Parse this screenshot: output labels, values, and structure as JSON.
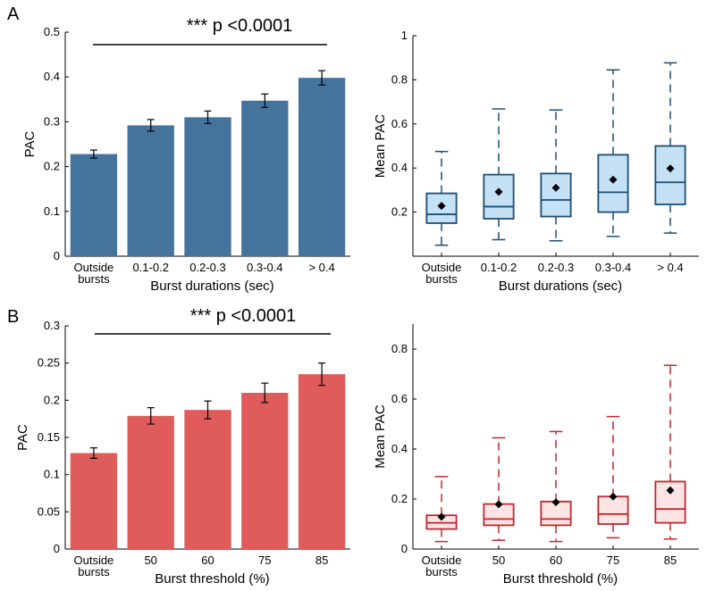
{
  "panel_labels": [
    "A",
    "B"
  ],
  "chart_data": [
    {
      "type": "bar",
      "panel": "A",
      "title": "",
      "color": "#44749c",
      "categories": [
        "Outside\nbursts",
        "0.1-0.2",
        "0.2-0.3",
        "0.3-0.4",
        "> 0.4"
      ],
      "values": [
        0.228,
        0.292,
        0.31,
        0.347,
        0.398
      ],
      "errors": [
        0.009,
        0.013,
        0.014,
        0.015,
        0.016
      ],
      "xlabel": "Burst durations (sec)",
      "ylabel": "PAC",
      "ylim": [
        0,
        0.5
      ],
      "yticks": [
        0,
        0.1,
        0.2,
        0.3,
        0.4,
        0.5
      ],
      "ytick_labels": [
        "0",
        "0.1",
        "0.2",
        "0.3",
        "0.4",
        "0.5"
      ],
      "significance": "*** p <0.0001"
    },
    {
      "type": "box",
      "panel": "A",
      "color": "#1c4e74",
      "fill": "#c5e1f6",
      "categories": [
        "Outside\nbursts",
        "0.1-0.2",
        "0.2-0.3",
        "0.3-0.4",
        "> 0.4"
      ],
      "boxes": [
        {
          "whisker_low": 0.05,
          "q1": 0.15,
          "median": 0.19,
          "q3": 0.285,
          "whisker_high": 0.475,
          "mean": 0.228
        },
        {
          "whisker_low": 0.075,
          "q1": 0.17,
          "median": 0.225,
          "q3": 0.37,
          "whisker_high": 0.668,
          "mean": 0.292
        },
        {
          "whisker_low": 0.07,
          "q1": 0.18,
          "median": 0.255,
          "q3": 0.375,
          "whisker_high": 0.663,
          "mean": 0.31
        },
        {
          "whisker_low": 0.09,
          "q1": 0.2,
          "median": 0.29,
          "q3": 0.46,
          "whisker_high": 0.845,
          "mean": 0.347
        },
        {
          "whisker_low": 0.105,
          "q1": 0.235,
          "median": 0.335,
          "q3": 0.5,
          "whisker_high": 0.877,
          "mean": 0.398
        }
      ],
      "xlabel": "Burst durations (sec)",
      "ylabel": "Mean PAC",
      "ylim": [
        0,
        1
      ],
      "yticks": [
        0.2,
        0.4,
        0.6,
        0.8,
        1
      ],
      "ytick_labels": [
        "0.2",
        "0.4",
        "0.6",
        "0.8",
        "1"
      ]
    },
    {
      "type": "bar",
      "panel": "B",
      "title": "",
      "color": "#df5c5a",
      "categories": [
        "Outside\nbursts",
        "50",
        "60",
        "75",
        "85"
      ],
      "values": [
        0.129,
        0.179,
        0.187,
        0.21,
        0.235
      ],
      "errors": [
        0.007,
        0.011,
        0.012,
        0.013,
        0.015
      ],
      "xlabel": "Burst threshold (%)",
      "ylabel": "PAC",
      "ylim": [
        0,
        0.3
      ],
      "yticks": [
        0,
        0.05,
        0.1,
        0.15,
        0.2,
        0.25,
        0.3
      ],
      "ytick_labels": [
        "0",
        "0.05",
        "0.1",
        "0.15",
        "0.2",
        "0.25",
        "0.3"
      ],
      "significance": "*** p <0.0001"
    },
    {
      "type": "box",
      "panel": "B",
      "color": "#c1272d",
      "fill": "#fde4e4",
      "categories": [
        "Outside\nbursts",
        "50",
        "60",
        "75",
        "85"
      ],
      "boxes": [
        {
          "whisker_low": 0.03,
          "q1": 0.08,
          "median": 0.105,
          "q3": 0.135,
          "whisker_high": 0.29,
          "mean": 0.129
        },
        {
          "whisker_low": 0.035,
          "q1": 0.095,
          "median": 0.12,
          "q3": 0.18,
          "whisker_high": 0.445,
          "mean": 0.179
        },
        {
          "whisker_low": 0.03,
          "q1": 0.095,
          "median": 0.12,
          "q3": 0.19,
          "whisker_high": 0.47,
          "mean": 0.187
        },
        {
          "whisker_low": 0.045,
          "q1": 0.1,
          "median": 0.14,
          "q3": 0.21,
          "whisker_high": 0.53,
          "mean": 0.21
        },
        {
          "whisker_low": 0.04,
          "q1": 0.105,
          "median": 0.16,
          "q3": 0.27,
          "whisker_high": 0.735,
          "mean": 0.235
        }
      ],
      "xlabel": "Burst threshold (%)",
      "ylabel": "Mean PAC",
      "ylim": [
        0,
        0.9
      ],
      "yticks": [
        0,
        0.2,
        0.4,
        0.6,
        0.8
      ],
      "ytick_labels": [
        "0",
        "0.2",
        "0.4",
        "0.6",
        "0.8"
      ]
    }
  ]
}
